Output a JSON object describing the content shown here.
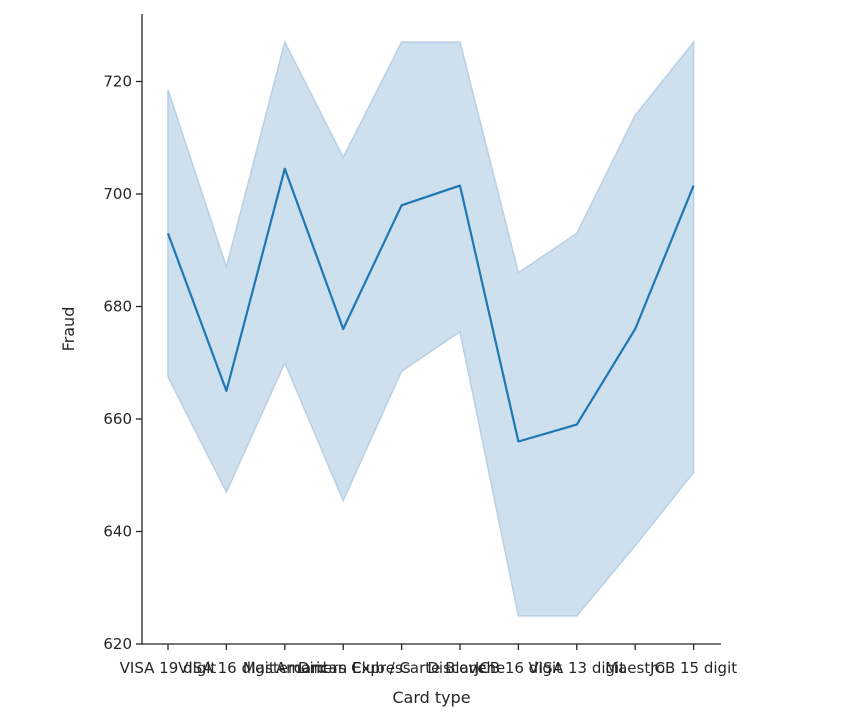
{
  "chart_data": {
    "type": "line",
    "xlabel": "Card type",
    "ylabel": "Fraud",
    "categories": [
      "VISA 19 digit",
      "VISA 16 digit",
      "Mastercard",
      "American Express",
      "Diners Club / Carte Blanche",
      "Discover",
      "JCB 16 digit",
      "VISA 13 digit",
      "Maestro",
      "JCB 15 digit"
    ],
    "series": [
      {
        "values": [
          693,
          665,
          704.5,
          676,
          698,
          701.5,
          656,
          659,
          676,
          701.5
        ],
        "ci_upper": [
          718.5,
          687,
          727,
          706.5,
          727,
          727,
          686,
          693,
          714,
          727
        ],
        "ci_lower": [
          667.5,
          647,
          670,
          645.5,
          668.5,
          675.5,
          625,
          625,
          637.5,
          650.5
        ]
      }
    ],
    "ylim": [
      620,
      732
    ],
    "yticks": [
      620,
      640,
      660,
      680,
      700,
      720
    ],
    "colors": {
      "line": "#1f77b4",
      "band": "#a6c5e0",
      "band_edge": "#b8d0e6",
      "axis": "#262626"
    },
    "grid": false
  }
}
